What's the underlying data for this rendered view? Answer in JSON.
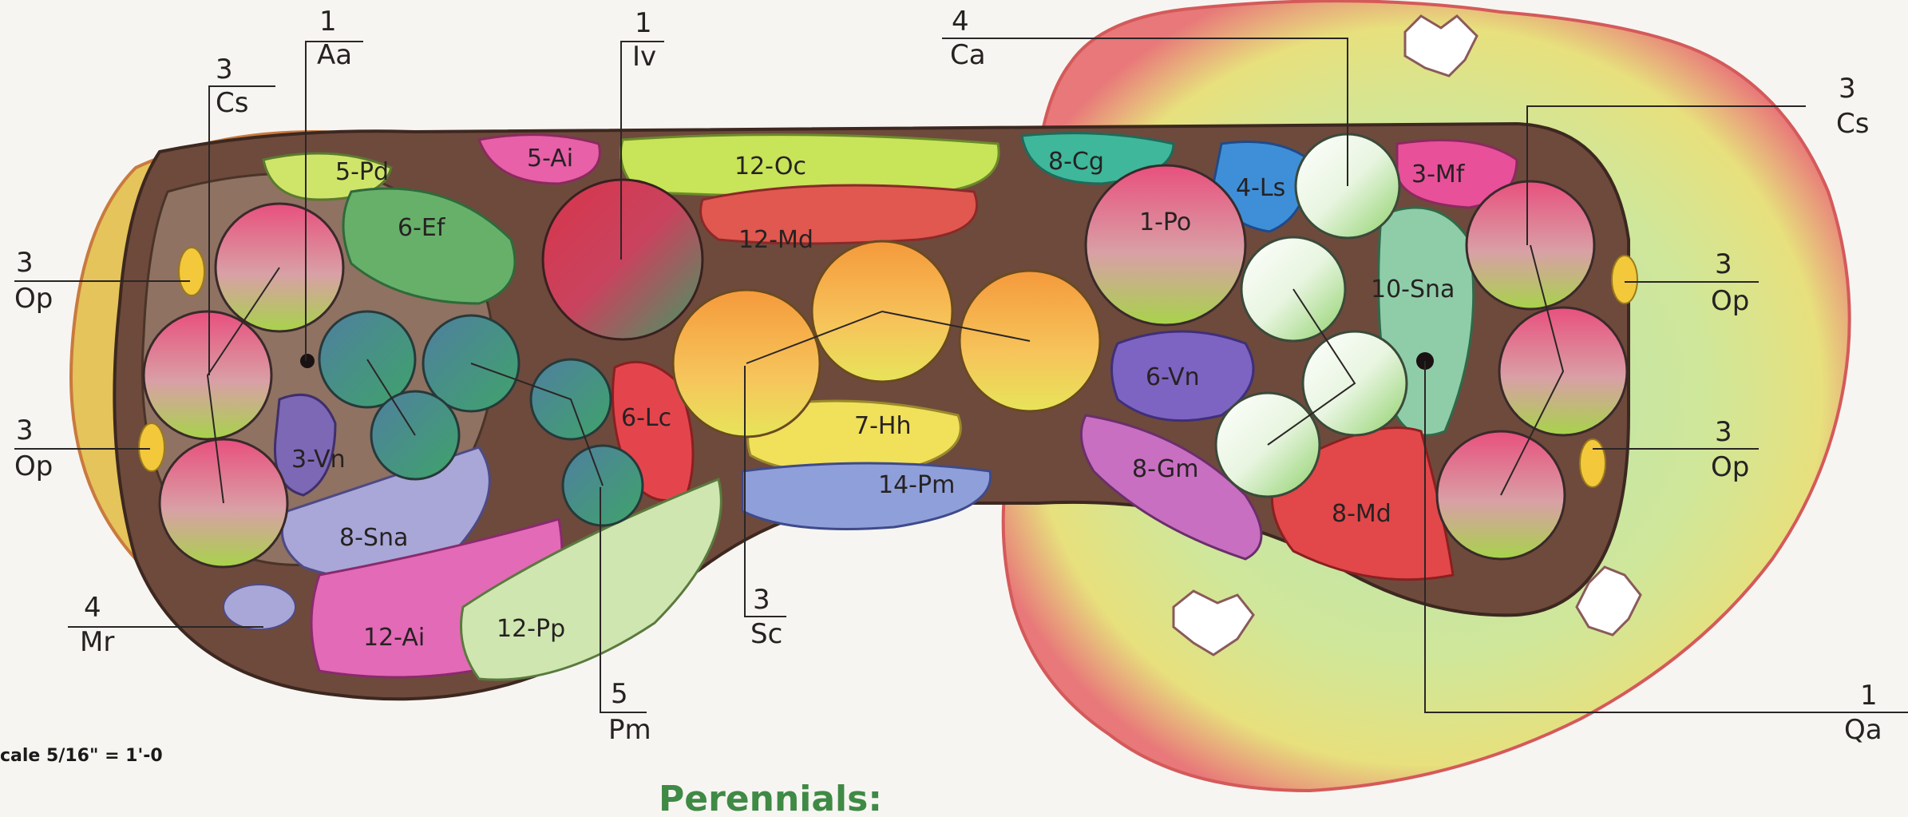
{
  "plan": {
    "heading": "Perennials:",
    "scale_text": "cale 5/16\" = 1'-0",
    "callouts": [
      {
        "id": "aa",
        "count": "1",
        "code": "Aa"
      },
      {
        "id": "cs-left",
        "count": "3",
        "code": "Cs"
      },
      {
        "id": "op-left-top",
        "count": "3",
        "code": "Op"
      },
      {
        "id": "op-left-bottom",
        "count": "3",
        "code": "Op"
      },
      {
        "id": "mr",
        "count": "4",
        "code": "Mr"
      },
      {
        "id": "iv",
        "count": "1",
        "code": "Iv"
      },
      {
        "id": "pm",
        "count": "5",
        "code": "Pm"
      },
      {
        "id": "sc",
        "count": "3",
        "code": "Sc"
      },
      {
        "id": "ca",
        "count": "4",
        "code": "Ca"
      },
      {
        "id": "cs-right",
        "count": "3",
        "code": "Cs"
      },
      {
        "id": "op-right-top",
        "count": "3",
        "code": "Op"
      },
      {
        "id": "op-right-bottom",
        "count": "3",
        "code": "Op"
      },
      {
        "id": "qa",
        "count": "1",
        "code": "Qa"
      }
    ],
    "plant_labels": [
      "5-Pd",
      "6-Ef",
      "3-Vn",
      "8-Sna",
      "5-Ai",
      "12-Oc",
      "12-Md",
      "6-Lc",
      "7-Hh",
      "14-Pm",
      "12-Ai",
      "12-Pp",
      "8-Cg",
      "4-Ls",
      "3-Mf",
      "1-Po",
      "10-Sna",
      "6-Vn",
      "8-Gm",
      "8-Md"
    ]
  }
}
